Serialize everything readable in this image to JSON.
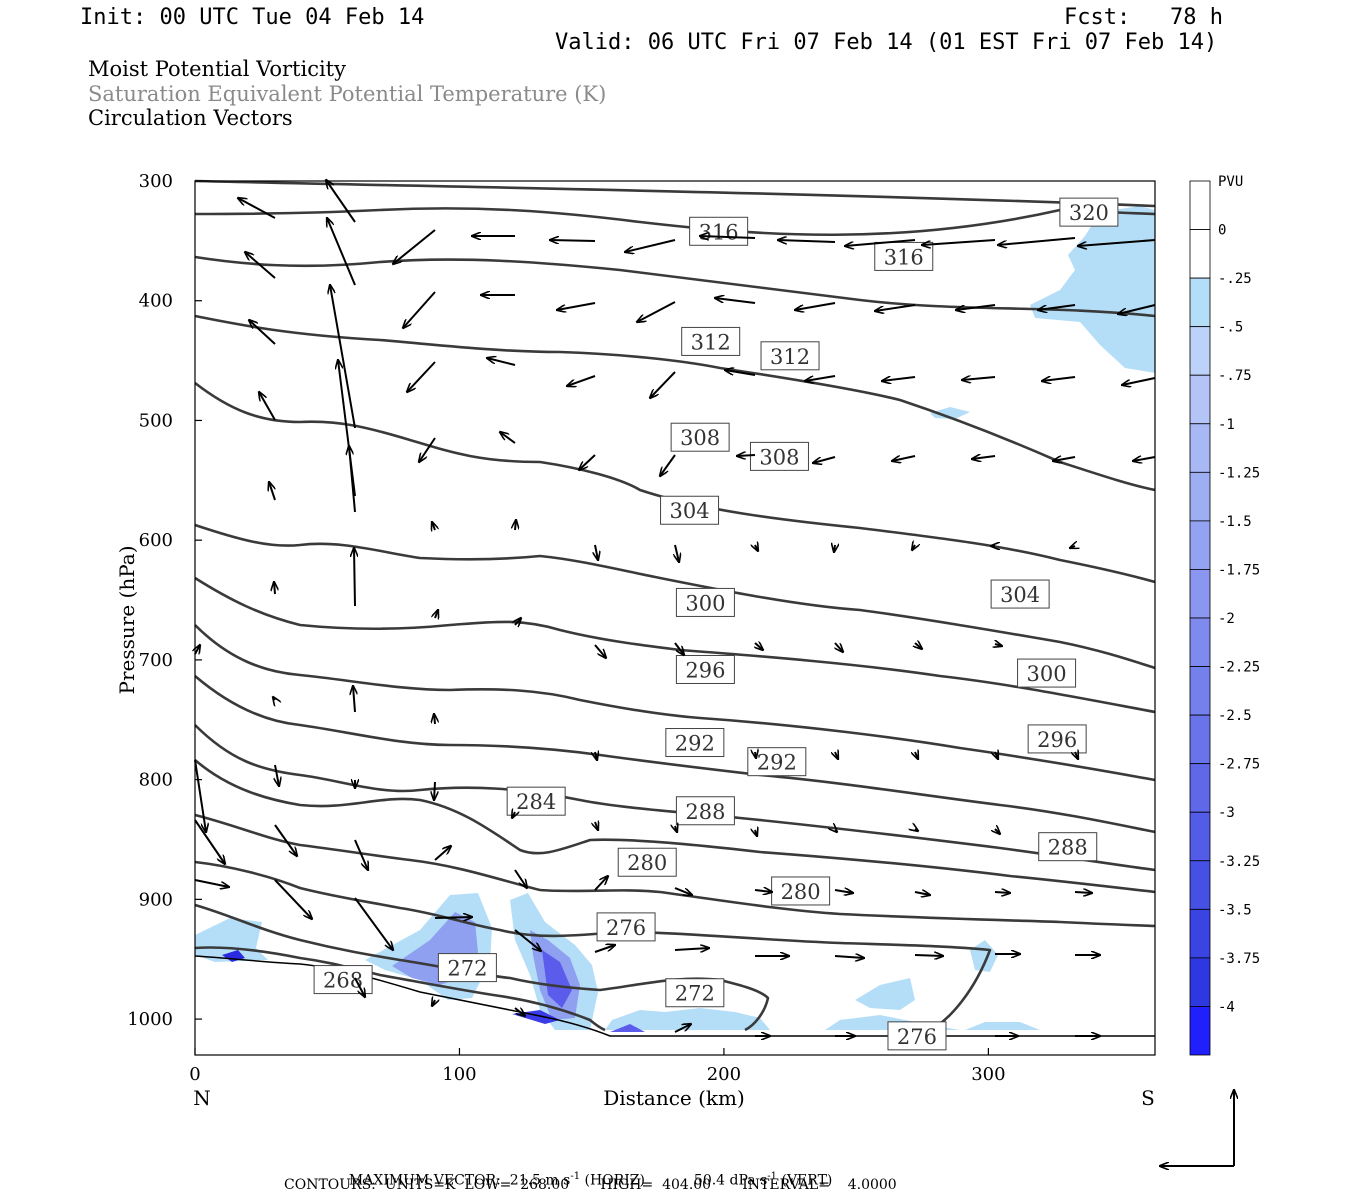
{
  "header": {
    "init": "Init: 00 UTC Tue 04 Feb 14",
    "fcst": "Fcst:   78 h",
    "valid": "Valid: 06 UTC Fri 07 Feb 14 (01 EST Fri 07 Feb 14)"
  },
  "titles": {
    "line1": "Moist Potential Vorticity",
    "line2": "Saturation Equivalent Potential Temperature (K)",
    "line3": "Circulation Vectors"
  },
  "footer": {
    "max_vector_label": "MAXIMUM VECTOR:",
    "max_horiz": "21.5 m s",
    "horiz_sup": "-1",
    "horiz_tag": "(HORIZ)",
    "max_vert": "50.4 dPa s",
    "vert_sup": "-1",
    "vert_tag": "(VERT)",
    "contours": "CONTOURS:  UNITS=K  LOW=  268.00       HIGH=  404.00       INTERVAL=    4.0000"
  },
  "colors": {
    "contour": "#3a3a3a",
    "pv_light": "#b4def8",
    "pv_mid": "#8fa0f0",
    "pv_dark": "#3b3be8"
  },
  "chart_data": {
    "type": "cross-section",
    "xlabel": "Distance (km)",
    "ylabel": "Pressure (hPa)",
    "xlim": [
      0,
      363
    ],
    "ylim": [
      1030,
      300
    ],
    "x_ticks": [
      0,
      100,
      200,
      300
    ],
    "y_ticks": [
      300,
      400,
      500,
      600,
      700,
      800,
      900,
      1000
    ],
    "x_end_labels": {
      "left": "N",
      "right": "S"
    },
    "contour_labels": [
      {
        "value": "320",
        "x": 338,
        "p": 326
      },
      {
        "value": "316",
        "x": 198,
        "p": 342
      },
      {
        "value": "316",
        "x": 268,
        "p": 363
      },
      {
        "value": "312",
        "x": 195,
        "p": 434
      },
      {
        "value": "312",
        "x": 225,
        "p": 446
      },
      {
        "value": "308",
        "x": 191,
        "p": 514
      },
      {
        "value": "308",
        "x": 221,
        "p": 530
      },
      {
        "value": "304",
        "x": 187,
        "p": 575
      },
      {
        "value": "304",
        "x": 312,
        "p": 645
      },
      {
        "value": "300",
        "x": 193,
        "p": 652
      },
      {
        "value": "300",
        "x": 322,
        "p": 711
      },
      {
        "value": "296",
        "x": 193,
        "p": 708
      },
      {
        "value": "296",
        "x": 326,
        "p": 766
      },
      {
        "value": "292",
        "x": 189,
        "p": 769
      },
      {
        "value": "292",
        "x": 220,
        "p": 785
      },
      {
        "value": "288",
        "x": 193,
        "p": 826
      },
      {
        "value": "288",
        "x": 330,
        "p": 856
      },
      {
        "value": "284",
        "x": 129,
        "p": 818
      },
      {
        "value": "280",
        "x": 171,
        "p": 869
      },
      {
        "value": "280",
        "x": 229,
        "p": 893
      },
      {
        "value": "276",
        "x": 163,
        "p": 923
      },
      {
        "value": "276",
        "x": 273,
        "p": 1014
      },
      {
        "value": "272",
        "x": 103,
        "p": 957
      },
      {
        "value": "272",
        "x": 189,
        "p": 978
      },
      {
        "value": "268",
        "x": 56,
        "p": 967
      }
    ],
    "colorbar": {
      "unit": "PVU",
      "labels": [
        "0",
        "-.25",
        "-.5",
        "-.75",
        "-1",
        "-1.25",
        "-1.5",
        "-1.75",
        "-2",
        "-2.25",
        "-2.5",
        "-2.75",
        "-3",
        "-3.25",
        "-3.5",
        "-3.75",
        "-4"
      ]
    }
  }
}
